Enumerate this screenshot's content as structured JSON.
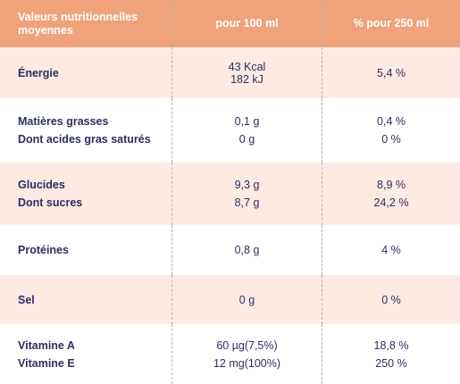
{
  "header": {
    "col1": "Valeurs nutritionnelles moyennes",
    "col2": "pour 100 ml",
    "col3": "% pour 250 ml"
  },
  "rows": [
    {
      "labels": [
        "Énergie"
      ],
      "per100": [
        "43 Kcal",
        "182 kJ"
      ],
      "per250": [
        "5,4 %"
      ]
    },
    {
      "labels": [
        "Matières grasses",
        "Dont acides gras saturés"
      ],
      "per100": [
        "0,1 g",
        "0 g"
      ],
      "per250": [
        "0,4 %",
        "0 %"
      ]
    },
    {
      "labels": [
        "Glucides",
        "Dont sucres"
      ],
      "per100": [
        "9,3 g",
        "8,7 g"
      ],
      "per250": [
        "8,9 %",
        "24,2 %"
      ]
    },
    {
      "labels": [
        "Protéines"
      ],
      "per100": [
        "0,8 g"
      ],
      "per250": [
        "4 %"
      ]
    },
    {
      "labels": [
        "Sel"
      ],
      "per100": [
        "0 g"
      ],
      "per250": [
        "0 %"
      ]
    },
    {
      "labels": [
        "Vitamine A",
        "Vitamine E"
      ],
      "per100": [
        "60 µg(7,5%)",
        "12 mg(100%)"
      ],
      "per250": [
        "18,8 %",
        "250 %"
      ]
    }
  ],
  "colors": {
    "header_bg": "#f0a27c",
    "row_tint": "#fdeae2",
    "text": "#2c2e63"
  }
}
